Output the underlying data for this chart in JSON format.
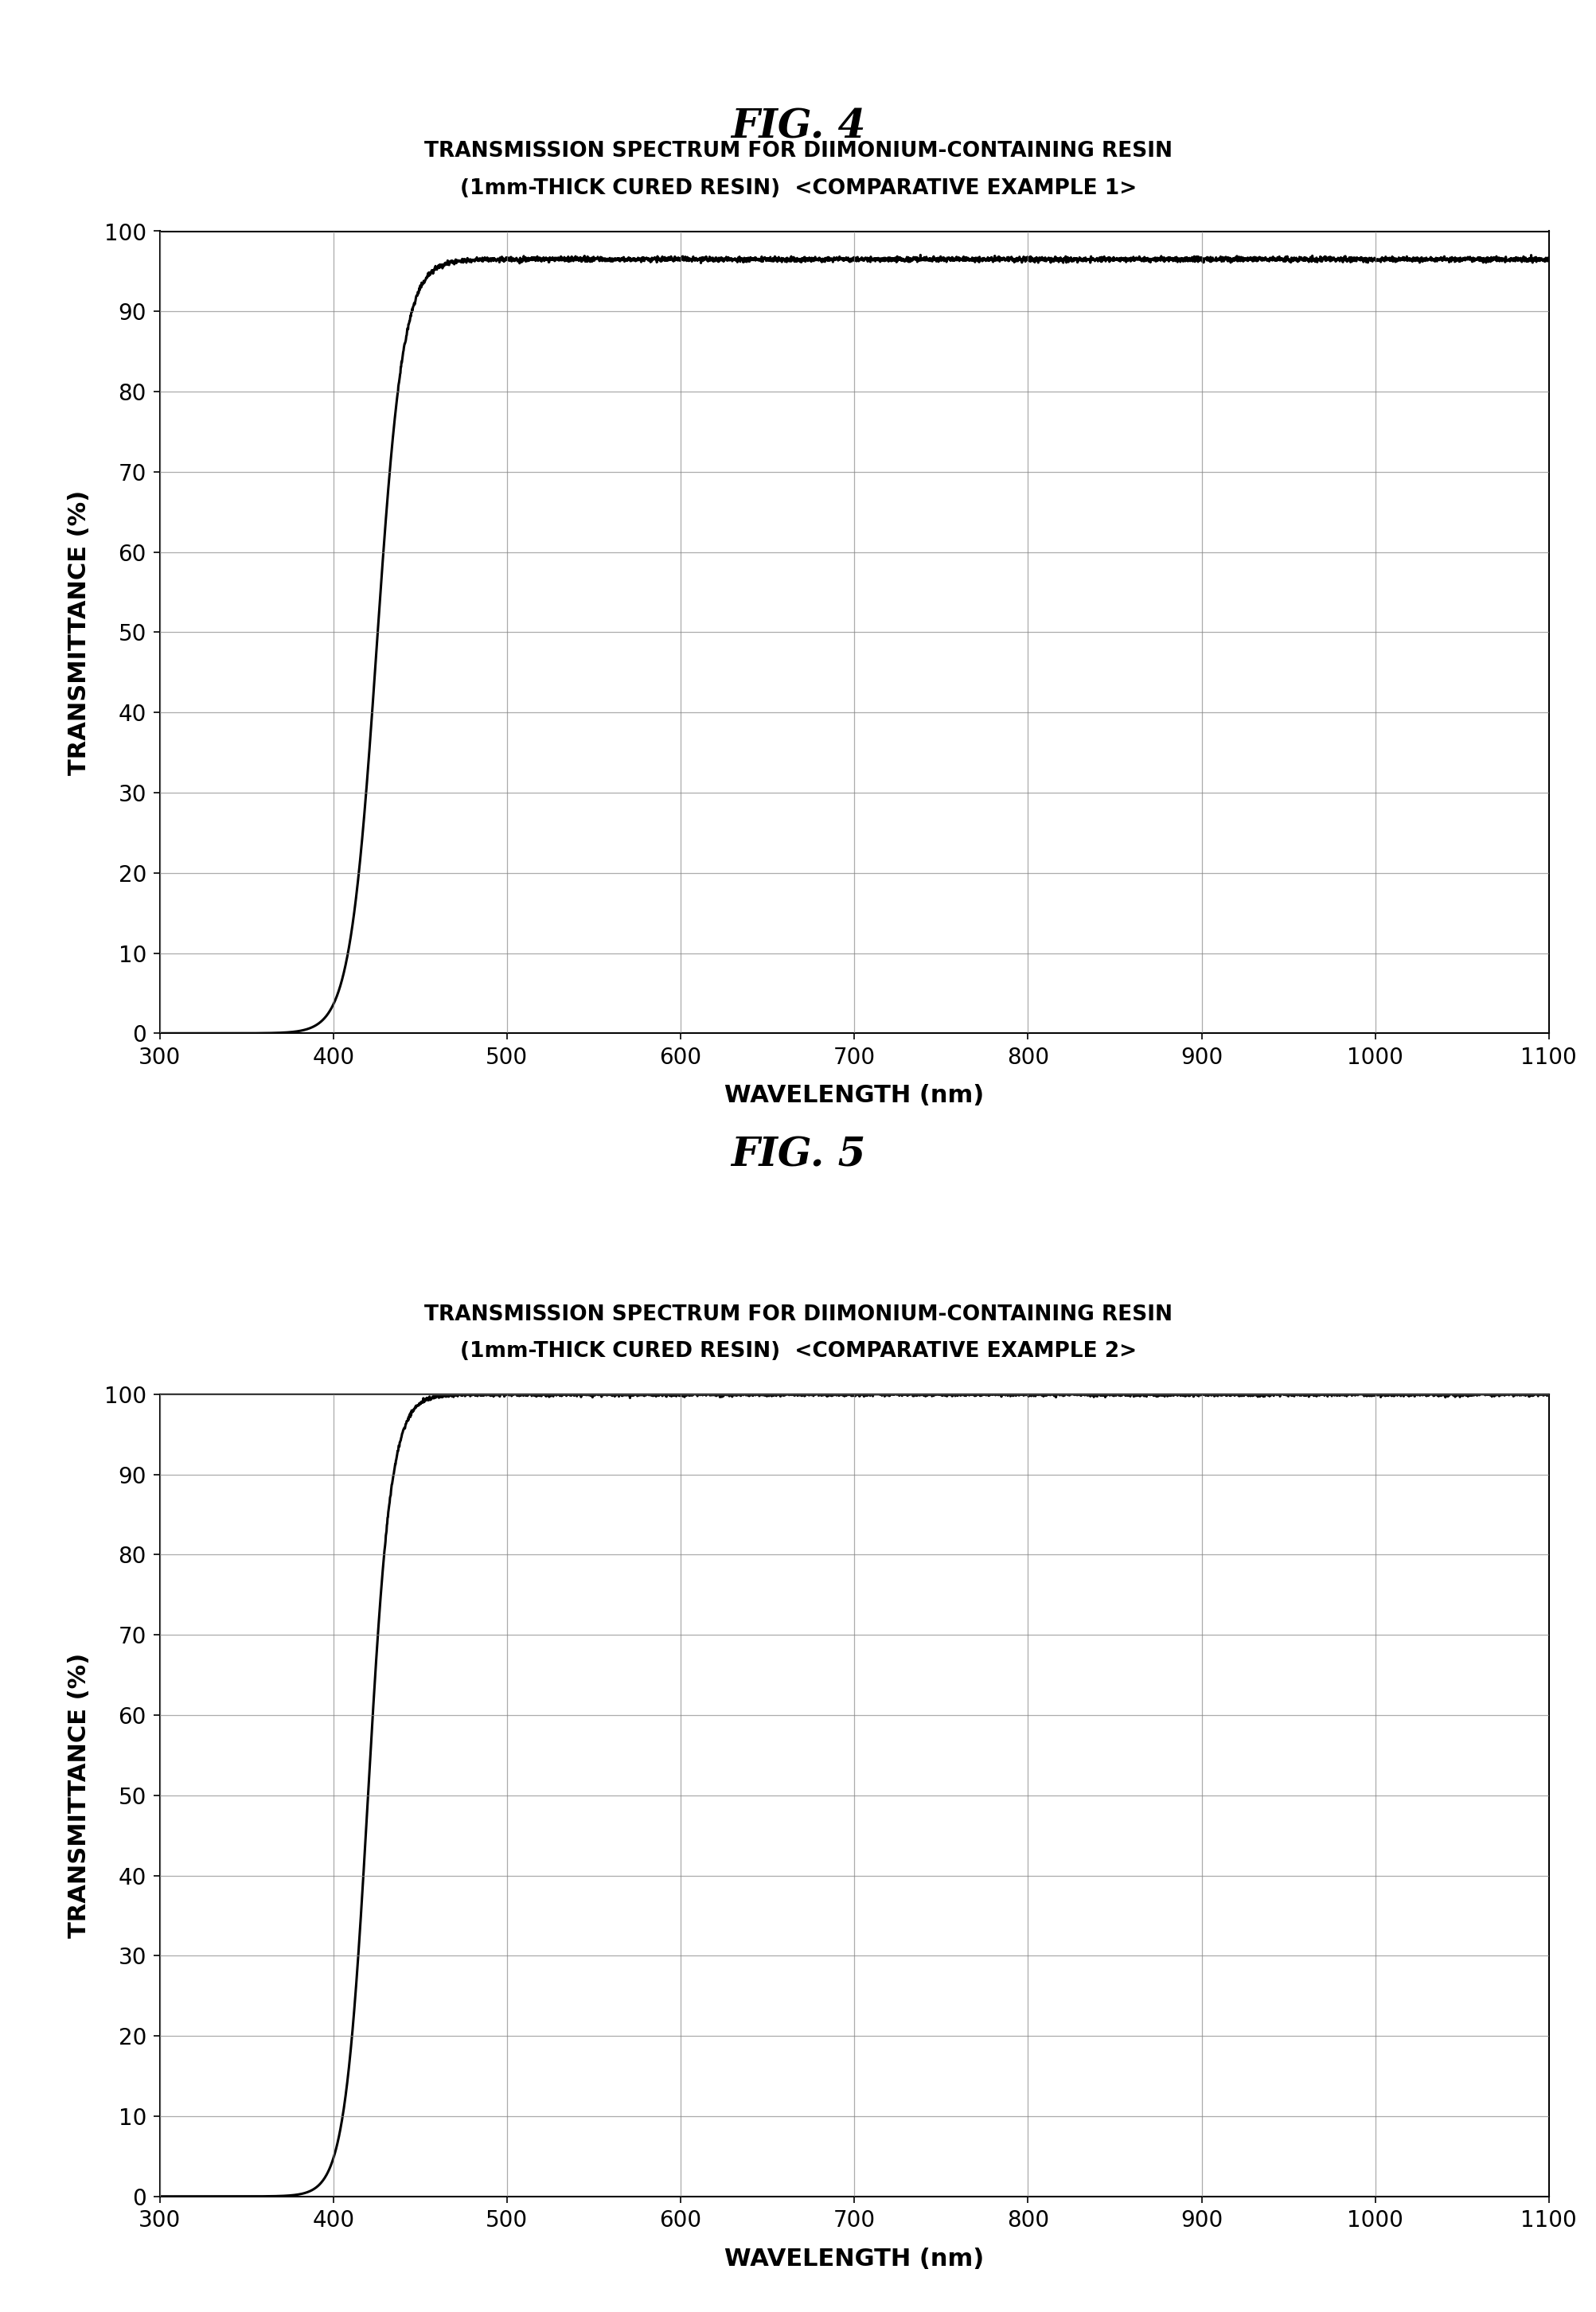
{
  "fig4_title": "FIG. 4",
  "fig5_title": "FIG. 5",
  "chart1_title_line1": "TRANSMISSION SPECTRUM FOR DIIMONIUM-CONTAINING RESIN",
  "chart1_title_line2": "(1mm-THICK CURED RESIN)  <COMPARATIVE EXAMPLE 1>",
  "chart2_title_line1": "TRANSMISSION SPECTRUM FOR DIIMONIUM-CONTAINING RESIN",
  "chart2_title_line2": "(1mm-THICK CURED RESIN)  <COMPARATIVE EXAMPLE 2>",
  "xlabel": "WAVELENGTH (nm)",
  "ylabel": "TRANSMITTANCE (%)",
  "xmin": 300,
  "xmax": 1100,
  "ymin": 0,
  "ymax": 100,
  "xticks": [
    300,
    400,
    500,
    600,
    700,
    800,
    900,
    1000,
    1100
  ],
  "yticks": [
    0,
    10,
    20,
    30,
    40,
    50,
    60,
    70,
    80,
    90,
    100
  ],
  "line_color": "#000000",
  "background_color": "#ffffff",
  "grid_color": "#888888",
  "fig_title_fontsize": 36,
  "chart_title_fontsize": 19,
  "axis_label_fontsize": 22,
  "tick_fontsize": 20
}
